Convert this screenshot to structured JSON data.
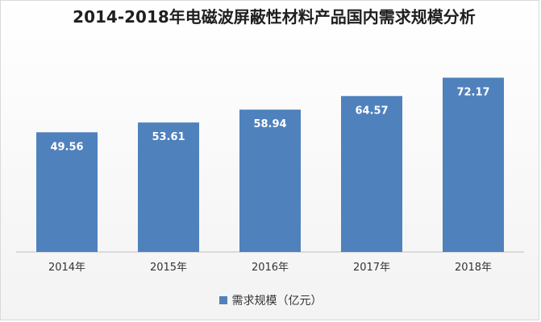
{
  "chart_data": {
    "type": "bar",
    "title": "2014-2018年电磁波屏蔽性材料产品国内需求规模分析",
    "categories": [
      "2014年",
      "2015年",
      "2016年",
      "2017年",
      "2018年"
    ],
    "series": [
      {
        "name": "需求规模（亿元）",
        "values": [
          49.56,
          53.61,
          58.94,
          64.57,
          72.17
        ]
      }
    ],
    "value_labels": [
      "49.56",
      "53.61",
      "58.94",
      "64.57",
      "72.17"
    ],
    "xlabel": "",
    "ylabel": "",
    "ylim": [
      0,
      80
    ],
    "grid": false,
    "legend_position": "bottom",
    "colors": {
      "bar": "#4f81bd",
      "axis": "#bfbfbf",
      "value_label": "#ffffff"
    }
  }
}
